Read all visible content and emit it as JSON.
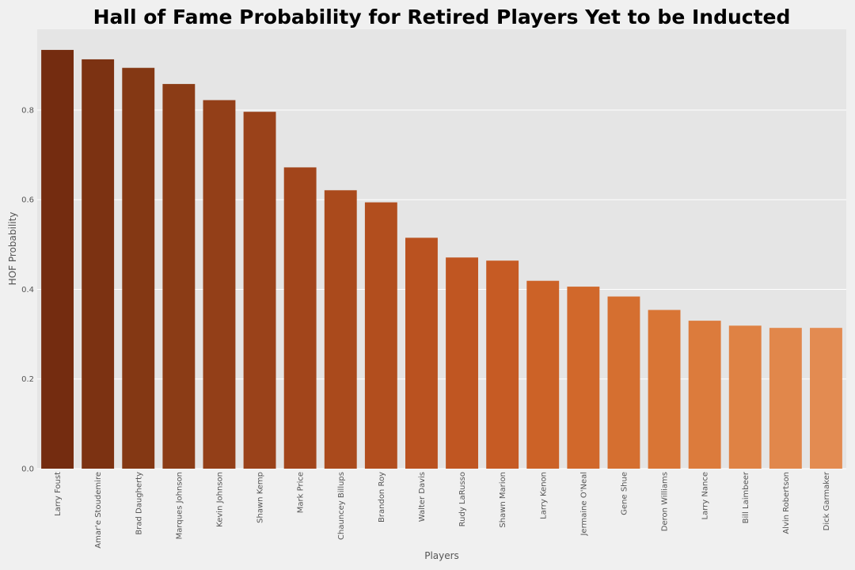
{
  "chart_data": {
    "type": "bar",
    "title": "Hall of Fame Probability for Retired Players Yet to be Inducted",
    "xlabel": "Players",
    "ylabel": "HOF Probability",
    "ylim": [
      0,
      0.98
    ],
    "yticks": [
      "0.0",
      "0.2",
      "0.4",
      "0.6",
      "0.8"
    ],
    "grid": true,
    "categories": [
      "Larry Foust",
      "Amar'e Stoudemire",
      "Brad Daugherty",
      "Marques Johnson",
      "Kevin Johnson",
      "Shawn Kemp",
      "Mark Price",
      "Chauncey Billups",
      "Brandon Roy",
      "Walter Davis",
      "Rudy LaRusso",
      "Shawn Marion",
      "Larry Kenon",
      "Jermaine O'Neal",
      "Gene Shue",
      "Deron Williams",
      "Larry Nance",
      "Bill Laimbeer",
      "Alvin Robertson",
      "Dick Garmaker"
    ],
    "values": [
      0.934,
      0.913,
      0.894,
      0.858,
      0.822,
      0.796,
      0.672,
      0.621,
      0.594,
      0.515,
      0.471,
      0.464,
      0.419,
      0.406,
      0.384,
      0.354,
      0.33,
      0.319,
      0.314,
      0.314
    ],
    "colors": [
      "#742c10",
      "#7c3212",
      "#843814",
      "#8b3c16",
      "#933f18",
      "#9a421a",
      "#a2451b",
      "#aa4a1c",
      "#b24e1e",
      "#ba5220",
      "#c05622",
      "#c65b24",
      "#cc6227",
      "#d1682b",
      "#d56f30",
      "#d97535",
      "#dc7b3c",
      "#df8244",
      "#e1874b",
      "#e38b51"
    ],
    "plot_background": "#e5e5e5",
    "gridline_color": "#ffffff"
  }
}
